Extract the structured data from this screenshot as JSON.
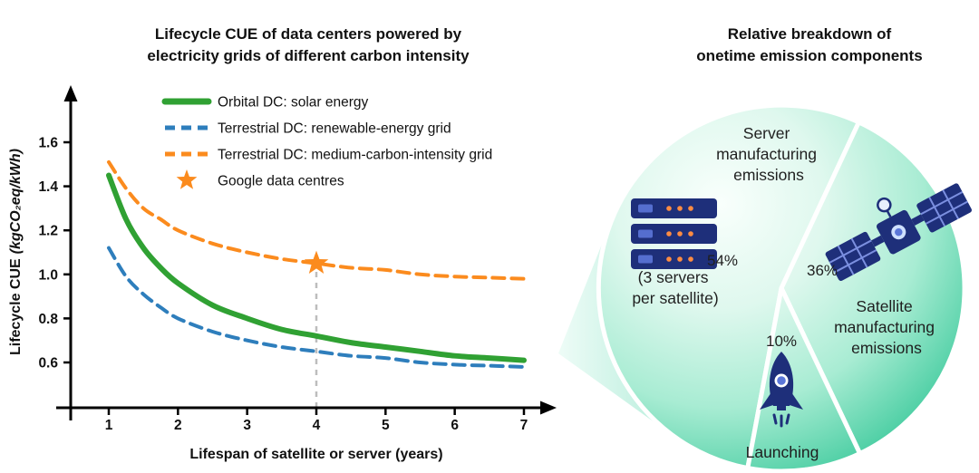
{
  "colors": {
    "icon_navy": "#1e2f7a",
    "icon_blue": "#5b76d8",
    "icon_orange": "#ff8c42",
    "icon_grid": "#7b8fe0",
    "pie_deep_green": "#41cb9e",
    "pie_pale_green": "#f9fffc",
    "annotation_gray": "#bdbdbd"
  },
  "chart_data": [
    {
      "type": "line",
      "title_lines": [
        "Lifecycle CUE of data centers powered by",
        "electricity grids of different carbon intensity"
      ],
      "xlabel": "Lifespan of satellite or server (years)",
      "ylabel": "Lifecycle CUE",
      "ylabel_unit": "(kgCO₂eq/kWh)",
      "xlim": [
        0.5,
        7.5
      ],
      "ylim": [
        0.45,
        1.7
      ],
      "x_ticks": [
        1,
        2,
        3,
        4,
        5,
        6,
        7
      ],
      "y_ticks": [
        "0.6",
        "0.8",
        "1.0",
        "1.2",
        "1.4",
        "1.6"
      ],
      "grid": false,
      "legend_position": "upper-center-inside",
      "series": [
        {
          "name": "orbital-dc-solar",
          "label": "Orbital DC: solar energy",
          "color": "#30a133",
          "dash": "solid",
          "width": 6,
          "points": [
            [
              1,
              1.45
            ],
            [
              1.25,
              1.25
            ],
            [
              1.5,
              1.12
            ],
            [
              1.75,
              1.03
            ],
            [
              2,
              0.96
            ],
            [
              2.5,
              0.86
            ],
            [
              3,
              0.8
            ],
            [
              3.5,
              0.75
            ],
            [
              4,
              0.72
            ],
            [
              4.5,
              0.69
            ],
            [
              5,
              0.67
            ],
            [
              5.5,
              0.65
            ],
            [
              6,
              0.63
            ],
            [
              6.5,
              0.62
            ],
            [
              7,
              0.61
            ]
          ]
        },
        {
          "name": "terrestrial-dc-renewable-grid",
          "label": "Terrestrial DC: renewable-energy grid",
          "color": "#2e7ebc",
          "dash": "dashed",
          "width": 4,
          "points": [
            [
              1,
              1.12
            ],
            [
              1.25,
              0.99
            ],
            [
              1.5,
              0.91
            ],
            [
              1.75,
              0.85
            ],
            [
              2,
              0.8
            ],
            [
              2.5,
              0.74
            ],
            [
              3,
              0.7
            ],
            [
              3.5,
              0.67
            ],
            [
              4,
              0.65
            ],
            [
              4.5,
              0.63
            ],
            [
              5,
              0.62
            ],
            [
              5.5,
              0.6
            ],
            [
              6,
              0.59
            ],
            [
              6.5,
              0.585
            ],
            [
              7,
              0.58
            ]
          ]
        },
        {
          "name": "terrestrial-dc-medium-carbon-grid",
          "label": "Terrestrial DC: medium-carbon-intensity grid",
          "color": "#fb8b1e",
          "dash": "dashed",
          "width": 4,
          "points": [
            [
              1,
              1.51
            ],
            [
              1.25,
              1.39
            ],
            [
              1.5,
              1.3
            ],
            [
              1.75,
              1.25
            ],
            [
              2,
              1.2
            ],
            [
              2.5,
              1.14
            ],
            [
              3,
              1.1
            ],
            [
              3.5,
              1.07
            ],
            [
              4,
              1.05
            ],
            [
              4.5,
              1.03
            ],
            [
              5,
              1.02
            ],
            [
              5.5,
              1.0
            ],
            [
              6,
              0.99
            ],
            [
              6.5,
              0.985
            ],
            [
              7,
              0.98
            ]
          ]
        },
        {
          "name": "google-data-centres",
          "label": "Google data centres",
          "color": "#fb8b1e",
          "marker": "star",
          "point": [
            4,
            1.05
          ]
        }
      ]
    },
    {
      "type": "pie",
      "title_lines": [
        "Relative breakdown of",
        "onetime emission components"
      ],
      "rotation_deg": 65,
      "gradient_stops": [
        "#f9fffc",
        "#dff8ee",
        "#a8ecd3",
        "#41cb9e"
      ],
      "funnel_gradient_stops": [
        "#eefcf7",
        "#7fdfc0"
      ],
      "slices": [
        {
          "name": "server-manufacturing",
          "pct": 54,
          "pct_label": "54%",
          "label_lines": [
            "Server",
            "manufacturing",
            "emissions"
          ],
          "note_lines": [
            "(3 servers",
            "per satellite)"
          ],
          "icon": "server-rack"
        },
        {
          "name": "satellite-manufacturing",
          "pct": 36,
          "pct_label": "36%",
          "label_lines": [
            "Satellite",
            "manufacturing",
            "emissions"
          ],
          "icon": "satellite"
        },
        {
          "name": "launching",
          "pct": 10,
          "pct_label": "10%",
          "label_lines": [
            "Launching"
          ],
          "icon": "rocket"
        }
      ]
    }
  ]
}
